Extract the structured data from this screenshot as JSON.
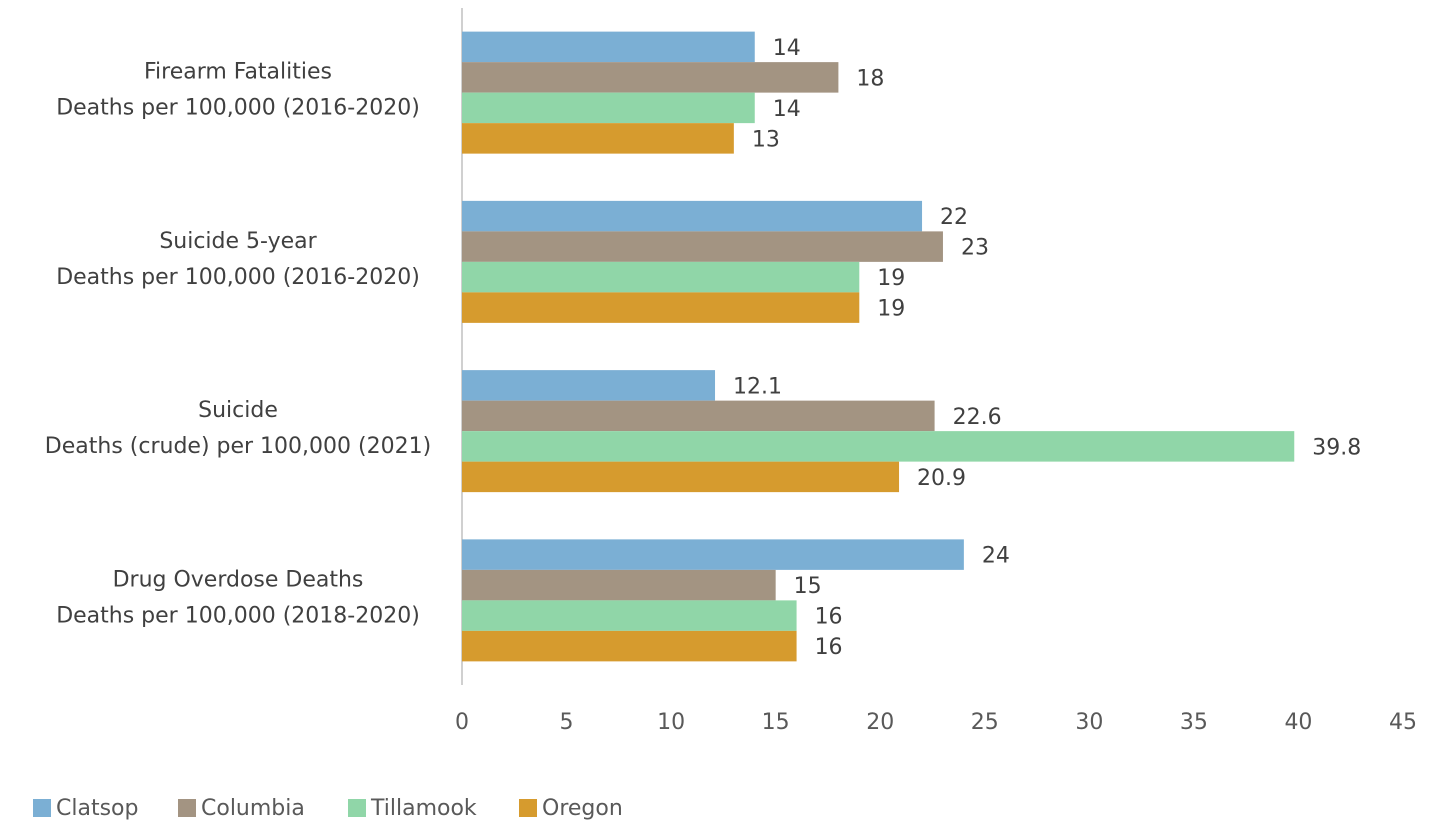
{
  "chart_data": {
    "type": "bar",
    "orientation": "horizontal",
    "categories": [
      [
        "Firearm Fatalities",
        "Deaths per 100,000 (2016-2020)"
      ],
      [
        "Suicide 5-year",
        "Deaths per 100,000 (2016-2020)"
      ],
      [
        "Suicide",
        "Deaths (crude) per 100,000 (2021)"
      ],
      [
        "Drug Overdose Deaths",
        "Deaths per 100,000 (2018-2020)"
      ]
    ],
    "series": [
      {
        "name": "Clatsop",
        "color": "#7bafd4",
        "values": [
          14,
          22,
          12.1,
          24
        ]
      },
      {
        "name": "Columbia",
        "color": "#a39482",
        "values": [
          18,
          23,
          22.6,
          15
        ]
      },
      {
        "name": "Tillamook",
        "color": "#90d6a8",
        "values": [
          14,
          19,
          39.8,
          16
        ]
      },
      {
        "name": "Oregon",
        "color": "#d69b2e",
        "values": [
          13,
          19,
          20.9,
          16
        ]
      }
    ],
    "xlim": [
      0,
      45
    ],
    "xticks": [
      0,
      5,
      10,
      15,
      20,
      25,
      30,
      35,
      40,
      45
    ],
    "legend": "bottom-left"
  }
}
